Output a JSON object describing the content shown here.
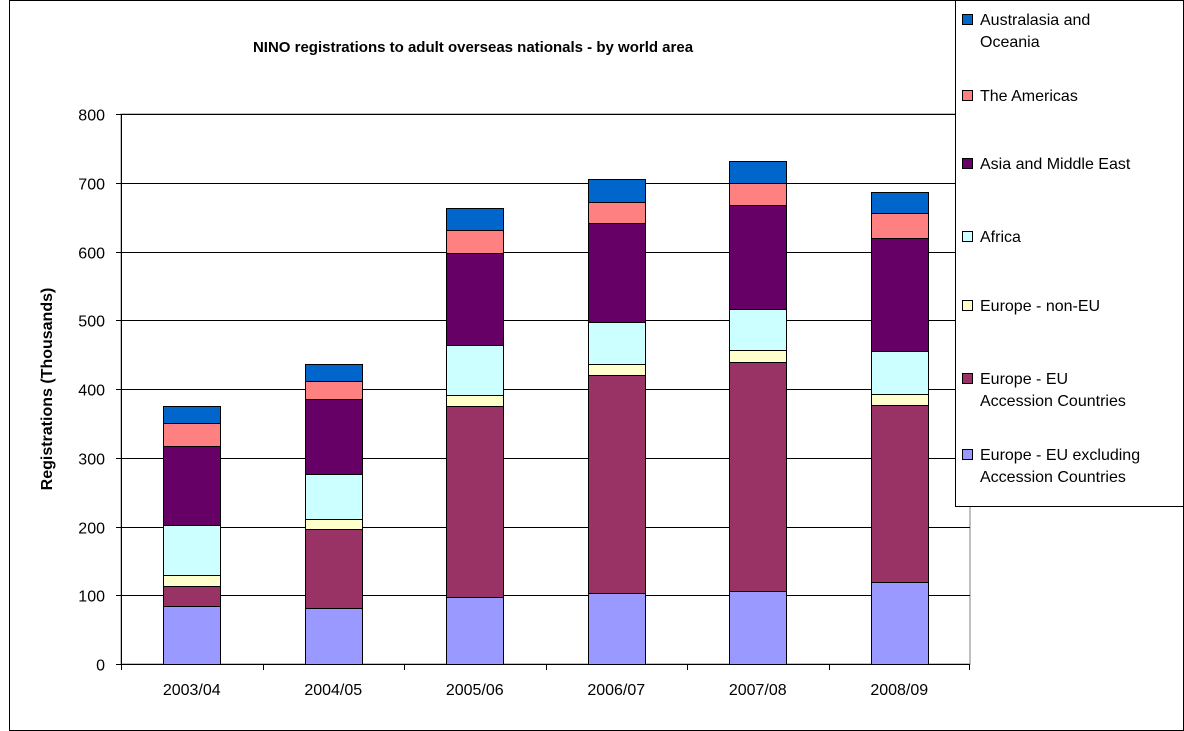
{
  "chart_data": {
    "type": "bar",
    "stacked": true,
    "title": "NINO registrations to adult overseas nationals - by world area",
    "xlabel": "",
    "ylabel": "Registrations (Thousands)",
    "ylim": [
      0,
      800
    ],
    "yticks": [
      "0",
      "100",
      "200",
      "300",
      "400",
      "500",
      "600",
      "700",
      "800"
    ],
    "categories": [
      "2003/04",
      "2004/05",
      "2005/06",
      "2006/07",
      "2007/08",
      "2008/09"
    ],
    "grid": true,
    "legend_position": "right",
    "series": [
      {
        "name": "Europe - EU excluding Accession Countries",
        "color": "#9999ff",
        "values": [
          84,
          81,
          98,
          103,
          106,
          120
        ]
      },
      {
        "name": "Europe - EU Accession Countries",
        "color": "#993366",
        "values": [
          30,
          116,
          277,
          317,
          334,
          257
        ]
      },
      {
        "name": "Europe - non-EU",
        "color": "#ffffcc",
        "values": [
          16,
          14,
          16,
          17,
          17,
          16
        ]
      },
      {
        "name": "Africa",
        "color": "#ccffff",
        "values": [
          72,
          65,
          73,
          60,
          59,
          63
        ]
      },
      {
        "name": "Asia and Middle East",
        "color": "#660066",
        "values": [
          115,
          109,
          134,
          145,
          151,
          164
        ]
      },
      {
        "name": "The Americas",
        "color": "#ff8080",
        "values": [
          33,
          27,
          33,
          30,
          32,
          36
        ]
      },
      {
        "name": "Australasia and Oceania",
        "color": "#0066cc",
        "values": [
          25,
          24,
          33,
          33,
          33,
          31
        ]
      }
    ],
    "legend_lines": [
      [
        "Australasia and",
        "Oceania"
      ],
      [
        "The Americas"
      ],
      [
        "Asia and Middle East"
      ],
      [
        "Africa"
      ],
      [
        "Europe - non-EU"
      ],
      [
        "Europe - EU",
        "Accession Countries"
      ],
      [
        "Europe - EU excluding",
        "Accession Countries"
      ]
    ]
  }
}
